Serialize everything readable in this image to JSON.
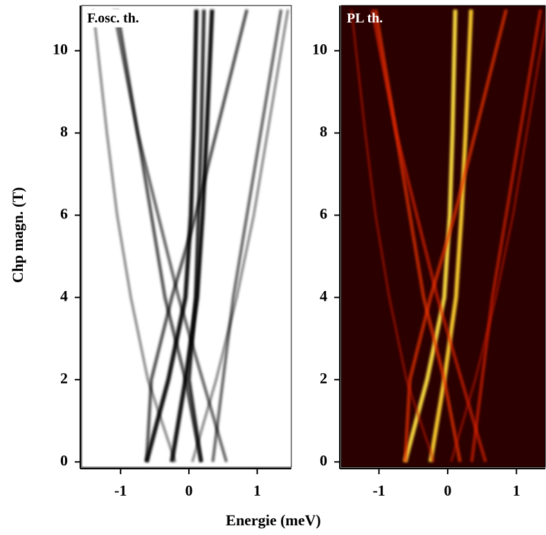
{
  "chart_data": [
    {
      "type": "spectrum-map",
      "title": "F.osc. th.",
      "ylabel": "Chp magn. (T)",
      "xlabel": "Energie (meV)",
      "background": "#ffffff",
      "title_color": "#000000",
      "xlim": [
        -1.57,
        1.5
      ],
      "ylim": [
        -0.13,
        11.1
      ],
      "xticks": [
        -1,
        0,
        1
      ],
      "yticks": [
        0,
        2,
        4,
        6,
        8,
        10
      ],
      "fields": [
        0,
        2,
        4,
        6,
        8,
        11
      ],
      "series": [
        {
          "color": "#000000",
          "strength": 1,
          "x": [
            -0.62,
            -0.3,
            -0.05,
            0.03,
            0.07,
            0.11
          ]
        },
        {
          "color": "#000000",
          "strength": 1,
          "x": [
            -0.25,
            -0.05,
            0.12,
            0.2,
            0.26,
            0.34
          ]
        },
        {
          "color": "#000000",
          "strength": 0.8,
          "x": [
            0.18,
            0.0,
            0.1,
            0.14,
            0.18,
            0.22
          ]
        },
        {
          "color": "#000000",
          "strength": 0.6,
          "x": [
            0.18,
            -0.05,
            -0.35,
            -0.55,
            -0.75,
            -1.05
          ]
        },
        {
          "color": "#000000",
          "strength": 0.5,
          "x": [
            0.55,
            0.2,
            -0.15,
            -0.45,
            -0.75,
            -1.1
          ]
        },
        {
          "color": "#000000",
          "strength": 0.6,
          "x": [
            -0.62,
            -0.55,
            -0.25,
            0.1,
            0.4,
            0.85
          ]
        },
        {
          "color": "#000000",
          "strength": 0.5,
          "x": [
            0.35,
            0.5,
            0.65,
            0.85,
            1.05,
            1.35
          ]
        },
        {
          "color": "#000000",
          "strength": 0.3,
          "x": [
            -0.2,
            -0.6,
            -0.85,
            -1.05,
            -1.2,
            -1.4
          ]
        },
        {
          "color": "#000000",
          "strength": 0.3,
          "x": [
            0.05,
            0.4,
            0.7,
            0.95,
            1.15,
            1.45
          ]
        }
      ]
    },
    {
      "type": "spectrum-map",
      "title": "PL th.",
      "background": "#2a0000",
      "title_color": "#ffffff",
      "xlim": [
        -1.55,
        1.42
      ],
      "ylim": [
        -0.13,
        11.1
      ],
      "xticks": [
        -1,
        0,
        1
      ],
      "yticks": [
        0,
        2,
        4,
        6,
        8,
        10
      ],
      "fields": [
        0,
        2,
        4,
        6,
        8,
        11
      ],
      "series": [
        {
          "color": "#ffe040",
          "strength": 1,
          "x": [
            -0.62,
            -0.3,
            -0.05,
            0.03,
            0.07,
            0.11
          ]
        },
        {
          "color": "#ffd030",
          "strength": 1,
          "x": [
            -0.25,
            -0.05,
            0.12,
            0.2,
            0.26,
            0.34
          ]
        },
        {
          "color": "#e83000",
          "strength": 0.7,
          "x": [
            0.18,
            -0.05,
            -0.35,
            -0.55,
            -0.75,
            -1.05
          ]
        },
        {
          "color": "#e02000",
          "strength": 0.6,
          "x": [
            0.55,
            0.2,
            -0.15,
            -0.45,
            -0.75,
            -1.1
          ]
        },
        {
          "color": "#e83000",
          "strength": 0.7,
          "x": [
            -0.62,
            -0.55,
            -0.25,
            0.1,
            0.4,
            0.85
          ]
        },
        {
          "color": "#e02000",
          "strength": 0.6,
          "x": [
            0.35,
            0.5,
            0.65,
            0.85,
            1.05,
            1.35
          ]
        },
        {
          "color": "#c01800",
          "strength": 0.4,
          "x": [
            -0.2,
            -0.6,
            -0.85,
            -1.05,
            -1.2,
            -1.4
          ]
        },
        {
          "color": "#c01800",
          "strength": 0.4,
          "x": [
            0.05,
            0.4,
            0.7,
            0.95,
            1.15,
            1.45
          ]
        }
      ]
    }
  ]
}
